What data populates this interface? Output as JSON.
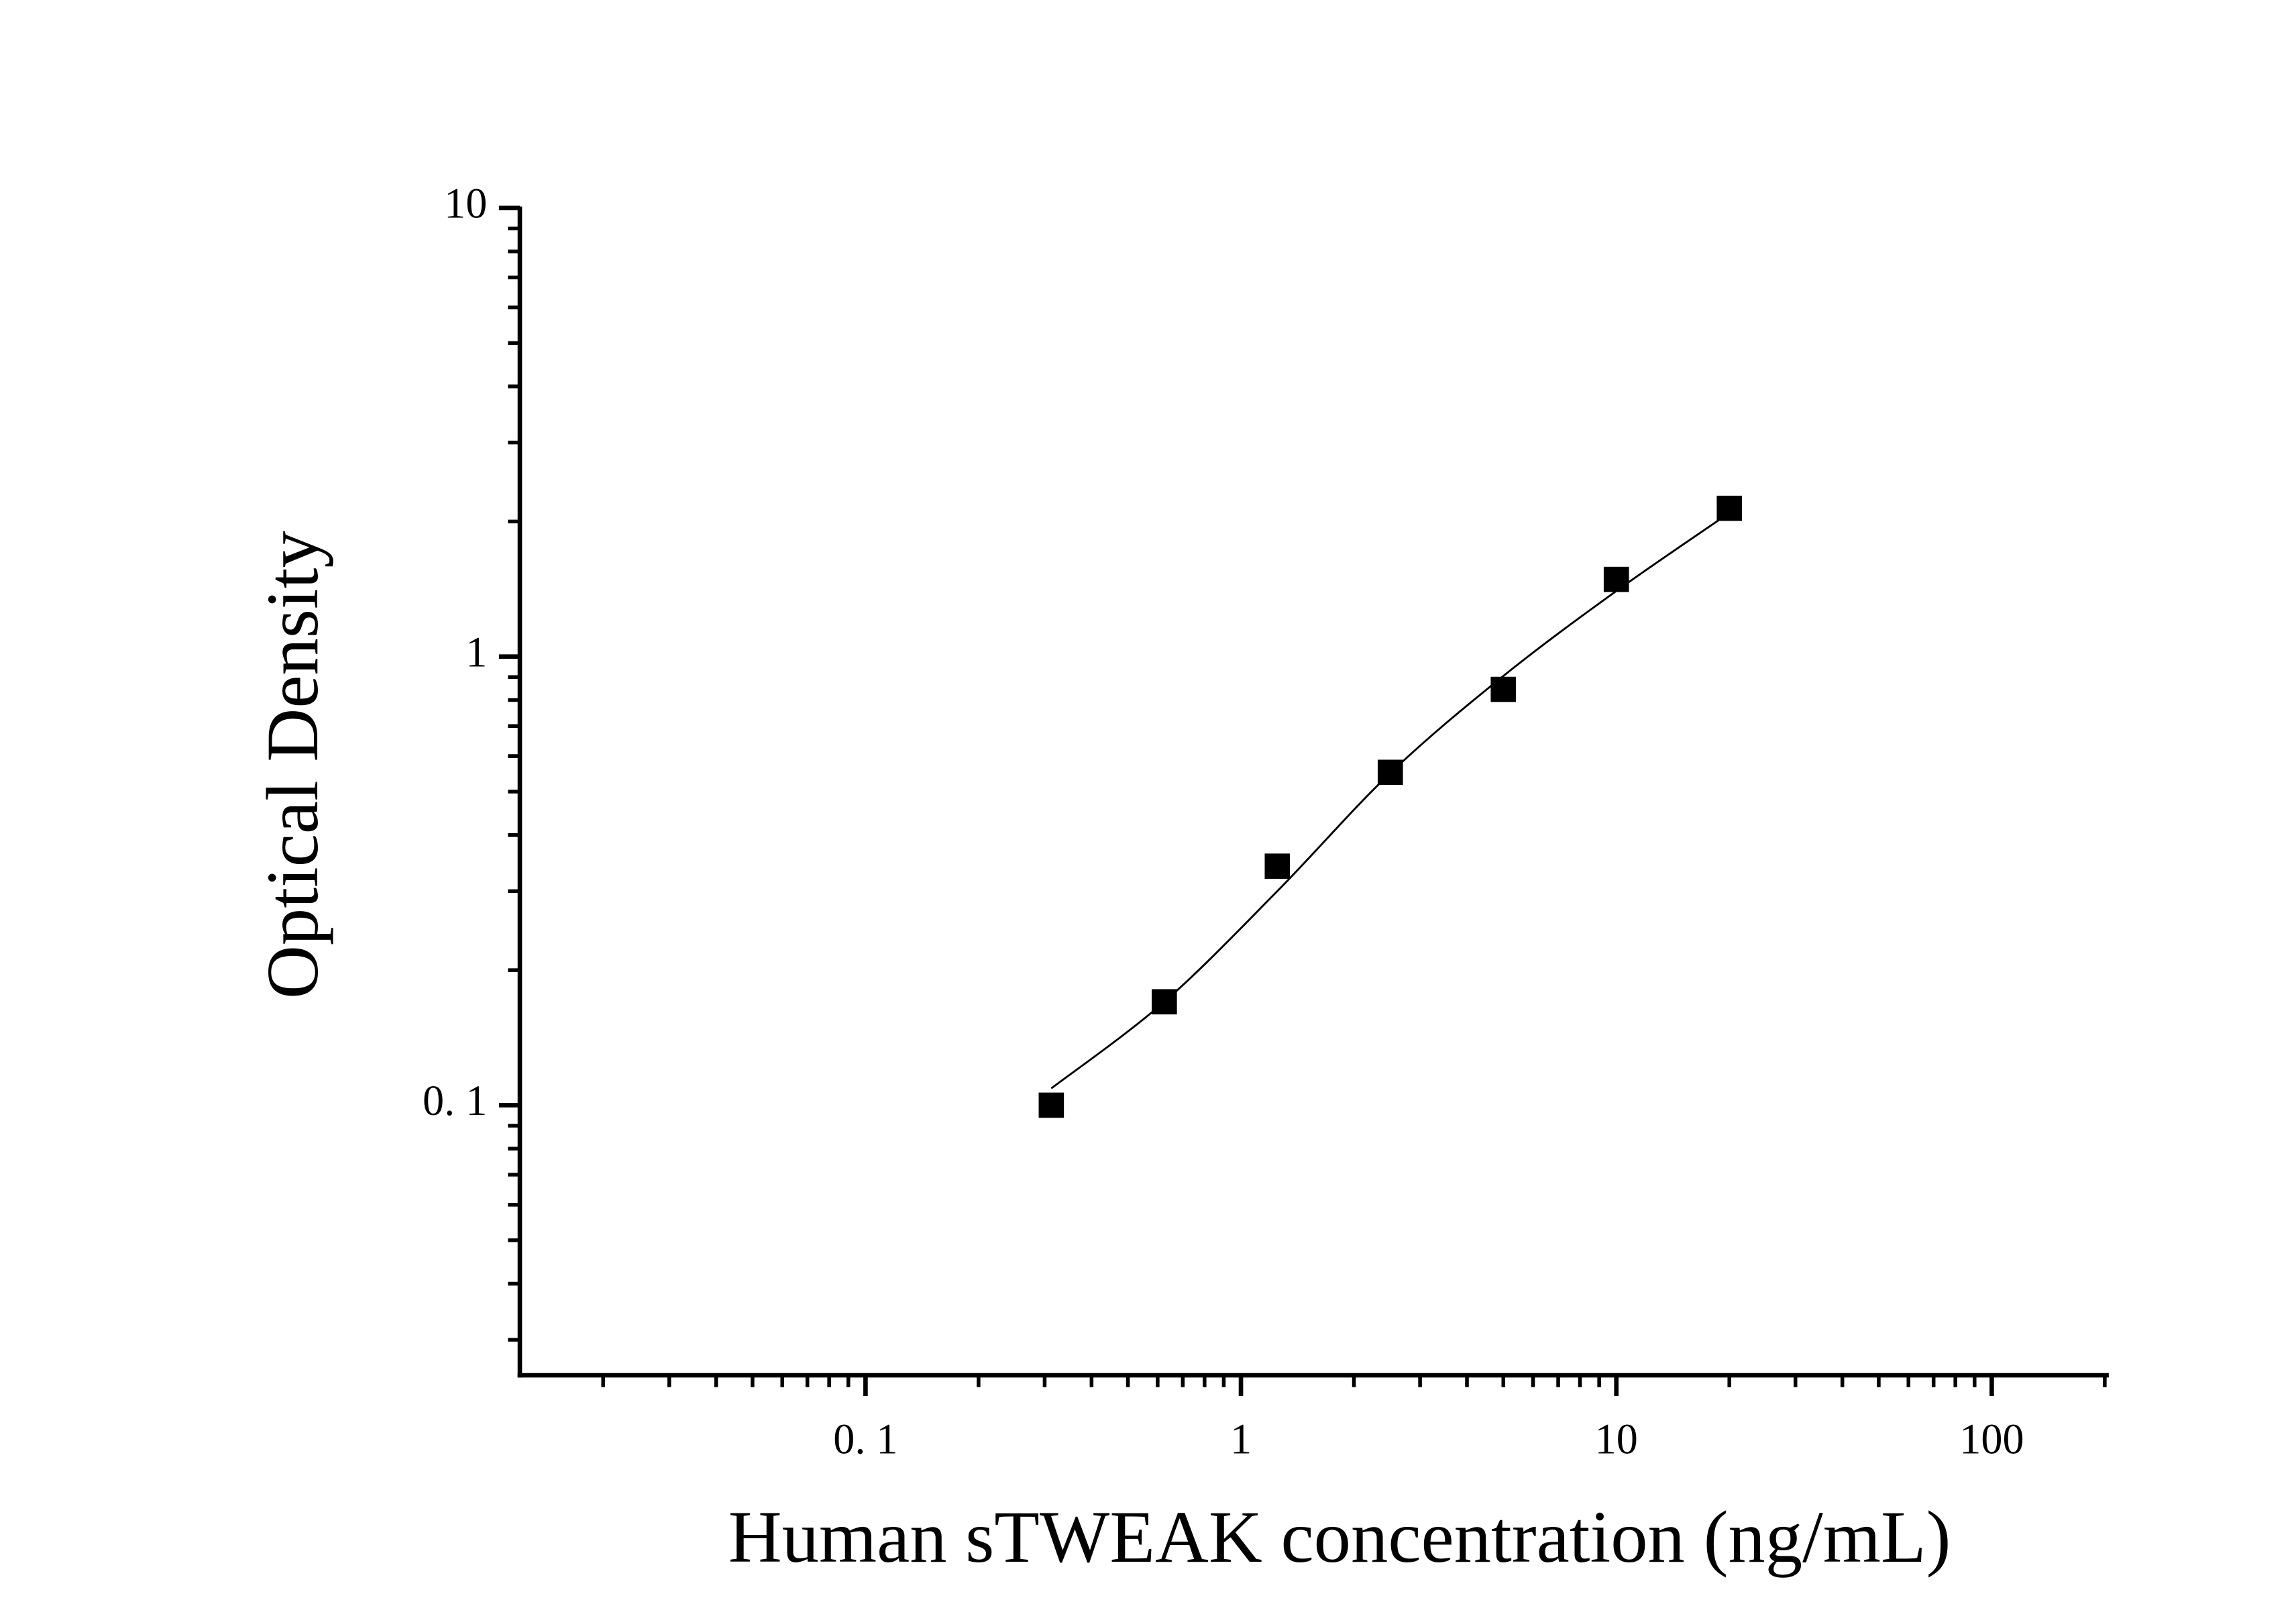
{
  "chart_data": {
    "type": "scatter",
    "x_label": "Human sTWEAK concentration (ng/mL)",
    "y_label": "Optical Density",
    "xscale": "log",
    "yscale": "log",
    "xlim": [
      0.012,
      205
    ],
    "ylim": [
      0.025,
      10
    ],
    "xticks": [
      {
        "value": 0.1,
        "label": "0. 1"
      },
      1,
      10,
      100
    ],
    "yticks": [
      {
        "value": 0.1,
        "label": "0. 1"
      },
      1,
      10
    ],
    "series": [
      {
        "type": "scatter",
        "color": "#000000",
        "x": [
          0.3125,
          0.625,
          1.25,
          2.5,
          5,
          10,
          20
        ],
        "values": [
          0.1,
          0.17,
          0.341,
          0.552,
          0.845,
          1.486,
          2.14
        ]
      },
      {
        "type": "line",
        "color": "#000000",
        "x": [
          0.3125,
          0.625,
          1.25,
          2.5,
          5,
          10,
          20
        ],
        "values": [
          0.109,
          0.17,
          0.3,
          0.55,
          0.905,
          1.4,
          2.09
        ]
      }
    ]
  }
}
